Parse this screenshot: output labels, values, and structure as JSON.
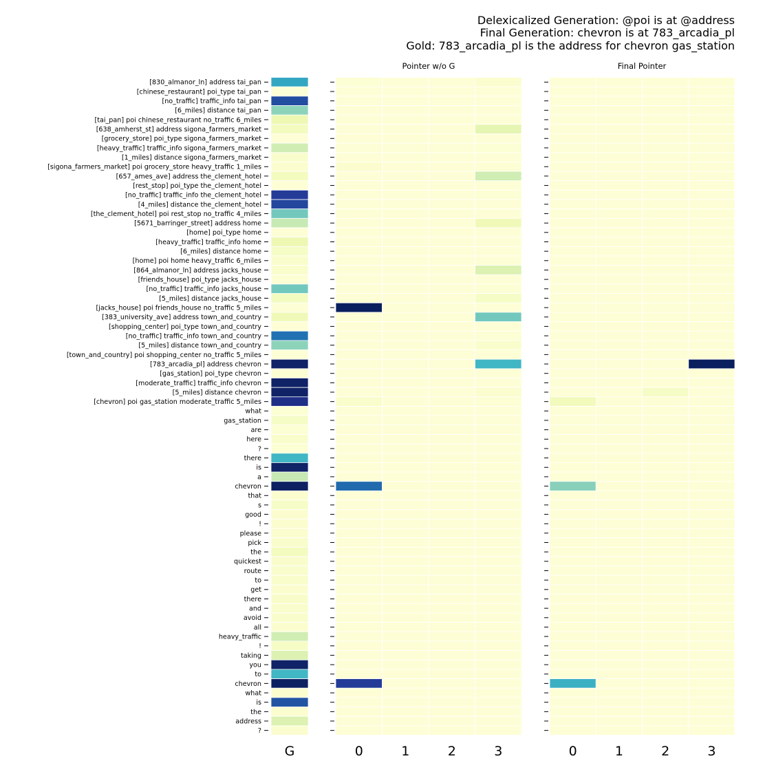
{
  "chart_data": {
    "type": "heatmap",
    "title_lines": [
      "Delexicalized Generation: @poi is at @address",
      "Final Generation: chevron is at 783_arcadia_pl",
      "Gold: 783_arcadia_pl is the address for chevron gas_station"
    ],
    "colormap": "YlGnBu",
    "color_range": [
      0,
      1
    ],
    "row_labels": [
      "[830_almanor_ln] address tai_pan",
      "[chinese_restaurant] poi_type tai_pan",
      "[no_traffic] traffic_info tai_pan",
      "[6_miles] distance tai_pan",
      "[tai_pan] poi chinese_restaurant no_traffic 6_miles",
      "[638_amherst_st] address sigona_farmers_market",
      "[grocery_store] poi_type sigona_farmers_market",
      "[heavy_traffic] traffic_info sigona_farmers_market",
      "[1_miles] distance sigona_farmers_market",
      "[sigona_farmers_market] poi grocery_store heavy_traffic 1_miles",
      "[657_ames_ave] address the_clement_hotel",
      "[rest_stop] poi_type the_clement_hotel",
      "[no_traffic] traffic_info the_clement_hotel",
      "[4_miles] distance the_clement_hotel",
      "[the_clement_hotel] poi rest_stop no_traffic 4_miles",
      "[5671_barringer_street] address home",
      "[home] poi_type home",
      "[heavy_traffic] traffic_info home",
      "[6_miles] distance home",
      "[home] poi home heavy_traffic 6_miles",
      "[864_almanor_ln] address jacks_house",
      "[friends_house] poi_type jacks_house",
      "[no_traffic] traffic_info jacks_house",
      "[5_miles] distance jacks_house",
      "[jacks_house] poi friends_house no_traffic 5_miles",
      "[383_university_ave] address town_and_country",
      "[shopping_center] poi_type town_and_country",
      "[no_traffic] traffic_info town_and_country",
      "[5_miles] distance town_and_country",
      "[town_and_country] poi shopping_center no_traffic 5_miles",
      "[783_arcadia_pl] address chevron",
      "[gas_station] poi_type chevron",
      "[moderate_traffic] traffic_info chevron",
      "[5_miles] distance chevron",
      "[chevron] poi gas_station moderate_traffic 5_miles",
      "what",
      "gas_station",
      "are",
      "here",
      "?",
      "there",
      "is",
      "a",
      "chevron",
      "that",
      "s",
      "good",
      "!",
      "please",
      "pick",
      "the",
      "quickest",
      "route",
      "to",
      "get",
      "there",
      "and",
      "avoid",
      "all",
      "heavy_traffic",
      "!",
      "taking",
      "you",
      "to",
      "chevron",
      "what",
      "is",
      "the",
      "address",
      "?"
    ],
    "panels": [
      {
        "title": "",
        "x_labels": [
          "G"
        ],
        "values": [
          [
            0.55
          ],
          [
            0.01
          ],
          [
            0.8
          ],
          [
            0.35
          ],
          [
            0.12
          ],
          [
            0.08
          ],
          [
            0.01
          ],
          [
            0.22
          ],
          [
            0.04
          ],
          [
            0.03
          ],
          [
            0.08
          ],
          [
            0.01
          ],
          [
            0.85
          ],
          [
            0.82
          ],
          [
            0.4
          ],
          [
            0.25
          ],
          [
            0.01
          ],
          [
            0.12
          ],
          [
            0.06
          ],
          [
            0.04
          ],
          [
            0.04
          ],
          [
            0.02
          ],
          [
            0.4
          ],
          [
            0.08
          ],
          [
            0.01
          ],
          [
            0.1
          ],
          [
            0.01
          ],
          [
            0.7
          ],
          [
            0.35
          ],
          [
            0.01
          ],
          [
            0.97
          ],
          [
            0.02
          ],
          [
            0.97
          ],
          [
            0.97
          ],
          [
            0.9
          ],
          [
            0.02
          ],
          [
            0.06
          ],
          [
            0.02
          ],
          [
            0.04
          ],
          [
            0.02
          ],
          [
            0.5
          ],
          [
            0.97
          ],
          [
            0.25
          ],
          [
            0.98
          ],
          [
            0.03
          ],
          [
            0.06
          ],
          [
            0.03
          ],
          [
            0.03
          ],
          [
            0.03
          ],
          [
            0.04
          ],
          [
            0.08
          ],
          [
            0.04
          ],
          [
            0.04
          ],
          [
            0.04
          ],
          [
            0.03
          ],
          [
            0.05
          ],
          [
            0.04
          ],
          [
            0.04
          ],
          [
            0.03
          ],
          [
            0.22
          ],
          [
            0.06
          ],
          [
            0.18
          ],
          [
            0.97
          ],
          [
            0.5
          ],
          [
            0.98
          ],
          [
            0.03
          ],
          [
            0.78
          ],
          [
            0.03
          ],
          [
            0.18
          ],
          [
            0.03
          ]
        ]
      },
      {
        "title": "Pointer w/o G",
        "x_labels": [
          "0",
          "1",
          "2",
          "3"
        ],
        "values": [
          [
            0.02,
            0.01,
            0.01,
            0.03
          ],
          [
            0.01,
            0.01,
            0.01,
            0.01
          ],
          [
            0.01,
            0.01,
            0.01,
            0.01
          ],
          [
            0.01,
            0.01,
            0.01,
            0.01
          ],
          [
            0.01,
            0.01,
            0.01,
            0.01
          ],
          [
            0.01,
            0.01,
            0.01,
            0.15
          ],
          [
            0.01,
            0.01,
            0.01,
            0.01
          ],
          [
            0.01,
            0.01,
            0.01,
            0.02
          ],
          [
            0.01,
            0.01,
            0.01,
            0.01
          ],
          [
            0.03,
            0.01,
            0.01,
            0.02
          ],
          [
            0.01,
            0.01,
            0.01,
            0.22
          ],
          [
            0.01,
            0.01,
            0.01,
            0.01
          ],
          [
            0.01,
            0.01,
            0.01,
            0.02
          ],
          [
            0.01,
            0.01,
            0.01,
            0.01
          ],
          [
            0.01,
            0.01,
            0.01,
            0.01
          ],
          [
            0.01,
            0.01,
            0.01,
            0.1
          ],
          [
            0.01,
            0.01,
            0.01,
            0.01
          ],
          [
            0.01,
            0.01,
            0.01,
            0.01
          ],
          [
            0.01,
            0.01,
            0.01,
            0.01
          ],
          [
            0.01,
            0.01,
            0.01,
            0.01
          ],
          [
            0.01,
            0.01,
            0.01,
            0.18
          ],
          [
            0.01,
            0.01,
            0.01,
            0.01
          ],
          [
            0.01,
            0.01,
            0.01,
            0.02
          ],
          [
            0.01,
            0.01,
            0.01,
            0.06
          ],
          [
            0.99,
            0.01,
            0.01,
            0.01
          ],
          [
            0.01,
            0.01,
            0.01,
            0.4
          ],
          [
            0.01,
            0.01,
            0.01,
            0.01
          ],
          [
            0.01,
            0.01,
            0.01,
            0.02
          ],
          [
            0.01,
            0.01,
            0.01,
            0.04
          ],
          [
            0.01,
            0.01,
            0.01,
            0.01
          ],
          [
            0.01,
            0.01,
            0.01,
            0.5
          ],
          [
            0.01,
            0.01,
            0.01,
            0.01
          ],
          [
            0.01,
            0.01,
            0.01,
            0.01
          ],
          [
            0.01,
            0.01,
            0.01,
            0.03
          ],
          [
            0.04,
            0.01,
            0.01,
            0.02
          ],
          [
            0.01,
            0.01,
            0.01,
            0.01
          ],
          [
            0.01,
            0.01,
            0.01,
            0.01
          ],
          [
            0.01,
            0.01,
            0.01,
            0.01
          ],
          [
            0.01,
            0.01,
            0.01,
            0.01
          ],
          [
            0.01,
            0.01,
            0.01,
            0.01
          ],
          [
            0.01,
            0.01,
            0.01,
            0.01
          ],
          [
            0.01,
            0.01,
            0.01,
            0.01
          ],
          [
            0.01,
            0.01,
            0.01,
            0.01
          ],
          [
            0.72,
            0.01,
            0.01,
            0.01
          ],
          [
            0.01,
            0.01,
            0.01,
            0.01
          ],
          [
            0.01,
            0.01,
            0.01,
            0.01
          ],
          [
            0.01,
            0.01,
            0.01,
            0.01
          ],
          [
            0.01,
            0.01,
            0.01,
            0.01
          ],
          [
            0.01,
            0.01,
            0.01,
            0.01
          ],
          [
            0.01,
            0.01,
            0.01,
            0.01
          ],
          [
            0.01,
            0.01,
            0.01,
            0.01
          ],
          [
            0.01,
            0.01,
            0.01,
            0.01
          ],
          [
            0.01,
            0.01,
            0.01,
            0.01
          ],
          [
            0.01,
            0.01,
            0.01,
            0.01
          ],
          [
            0.01,
            0.01,
            0.01,
            0.01
          ],
          [
            0.01,
            0.01,
            0.01,
            0.01
          ],
          [
            0.01,
            0.01,
            0.01,
            0.01
          ],
          [
            0.01,
            0.01,
            0.01,
            0.01
          ],
          [
            0.01,
            0.01,
            0.01,
            0.01
          ],
          [
            0.01,
            0.01,
            0.01,
            0.01
          ],
          [
            0.01,
            0.01,
            0.01,
            0.01
          ],
          [
            0.01,
            0.01,
            0.01,
            0.01
          ],
          [
            0.01,
            0.01,
            0.01,
            0.01
          ],
          [
            0.01,
            0.01,
            0.01,
            0.01
          ],
          [
            0.85,
            0.01,
            0.01,
            0.01
          ],
          [
            0.01,
            0.01,
            0.01,
            0.01
          ],
          [
            0.01,
            0.01,
            0.01,
            0.01
          ],
          [
            0.01,
            0.01,
            0.01,
            0.01
          ],
          [
            0.01,
            0.01,
            0.01,
            0.01
          ],
          [
            0.01,
            0.01,
            0.01,
            0.01
          ]
        ]
      },
      {
        "title": "Final Pointer",
        "x_labels": [
          "0",
          "1",
          "2",
          "3"
        ],
        "values": [
          [
            0.01,
            0.01,
            0.01,
            0.01
          ],
          [
            0.01,
            0.01,
            0.01,
            0.01
          ],
          [
            0.01,
            0.01,
            0.01,
            0.01
          ],
          [
            0.01,
            0.01,
            0.01,
            0.01
          ],
          [
            0.01,
            0.01,
            0.01,
            0.01
          ],
          [
            0.01,
            0.01,
            0.01,
            0.01
          ],
          [
            0.01,
            0.01,
            0.01,
            0.01
          ],
          [
            0.01,
            0.01,
            0.01,
            0.01
          ],
          [
            0.01,
            0.01,
            0.01,
            0.01
          ],
          [
            0.01,
            0.01,
            0.01,
            0.01
          ],
          [
            0.01,
            0.01,
            0.01,
            0.01
          ],
          [
            0.01,
            0.01,
            0.01,
            0.01
          ],
          [
            0.01,
            0.01,
            0.01,
            0.01
          ],
          [
            0.01,
            0.01,
            0.01,
            0.01
          ],
          [
            0.01,
            0.01,
            0.01,
            0.01
          ],
          [
            0.01,
            0.01,
            0.01,
            0.01
          ],
          [
            0.01,
            0.01,
            0.01,
            0.01
          ],
          [
            0.01,
            0.01,
            0.01,
            0.01
          ],
          [
            0.01,
            0.01,
            0.01,
            0.01
          ],
          [
            0.01,
            0.01,
            0.01,
            0.01
          ],
          [
            0.01,
            0.01,
            0.01,
            0.01
          ],
          [
            0.01,
            0.01,
            0.01,
            0.01
          ],
          [
            0.01,
            0.01,
            0.01,
            0.01
          ],
          [
            0.01,
            0.01,
            0.01,
            0.01
          ],
          [
            0.01,
            0.01,
            0.01,
            0.01
          ],
          [
            0.01,
            0.01,
            0.01,
            0.01
          ],
          [
            0.01,
            0.01,
            0.01,
            0.01
          ],
          [
            0.01,
            0.01,
            0.01,
            0.01
          ],
          [
            0.01,
            0.01,
            0.01,
            0.01
          ],
          [
            0.01,
            0.01,
            0.01,
            0.01
          ],
          [
            0.01,
            0.01,
            0.01,
            0.99
          ],
          [
            0.01,
            0.01,
            0.01,
            0.01
          ],
          [
            0.01,
            0.01,
            0.01,
            0.01
          ],
          [
            0.01,
            0.01,
            0.06,
            0.01
          ],
          [
            0.09,
            0.01,
            0.01,
            0.01
          ],
          [
            0.01,
            0.01,
            0.01,
            0.01
          ],
          [
            0.01,
            0.01,
            0.01,
            0.01
          ],
          [
            0.01,
            0.01,
            0.01,
            0.01
          ],
          [
            0.01,
            0.01,
            0.01,
            0.01
          ],
          [
            0.01,
            0.01,
            0.01,
            0.01
          ],
          [
            0.01,
            0.01,
            0.01,
            0.01
          ],
          [
            0.01,
            0.01,
            0.01,
            0.01
          ],
          [
            0.01,
            0.01,
            0.01,
            0.01
          ],
          [
            0.36,
            0.01,
            0.01,
            0.01
          ],
          [
            0.01,
            0.01,
            0.01,
            0.01
          ],
          [
            0.01,
            0.01,
            0.01,
            0.01
          ],
          [
            0.01,
            0.01,
            0.01,
            0.01
          ],
          [
            0.01,
            0.01,
            0.01,
            0.01
          ],
          [
            0.01,
            0.01,
            0.01,
            0.01
          ],
          [
            0.01,
            0.01,
            0.01,
            0.01
          ],
          [
            0.01,
            0.01,
            0.01,
            0.01
          ],
          [
            0.01,
            0.01,
            0.01,
            0.01
          ],
          [
            0.01,
            0.01,
            0.01,
            0.01
          ],
          [
            0.01,
            0.01,
            0.01,
            0.01
          ],
          [
            0.01,
            0.01,
            0.01,
            0.01
          ],
          [
            0.01,
            0.01,
            0.01,
            0.01
          ],
          [
            0.01,
            0.01,
            0.01,
            0.01
          ],
          [
            0.01,
            0.01,
            0.01,
            0.01
          ],
          [
            0.01,
            0.01,
            0.01,
            0.01
          ],
          [
            0.01,
            0.01,
            0.01,
            0.01
          ],
          [
            0.01,
            0.01,
            0.01,
            0.01
          ],
          [
            0.01,
            0.01,
            0.01,
            0.01
          ],
          [
            0.01,
            0.01,
            0.01,
            0.01
          ],
          [
            0.01,
            0.01,
            0.01,
            0.01
          ],
          [
            0.52,
            0.01,
            0.01,
            0.01
          ],
          [
            0.01,
            0.01,
            0.01,
            0.01
          ],
          [
            0.01,
            0.01,
            0.01,
            0.01
          ],
          [
            0.01,
            0.01,
            0.01,
            0.01
          ],
          [
            0.01,
            0.01,
            0.01,
            0.01
          ],
          [
            0.01,
            0.01,
            0.01,
            0.01
          ]
        ]
      }
    ]
  }
}
